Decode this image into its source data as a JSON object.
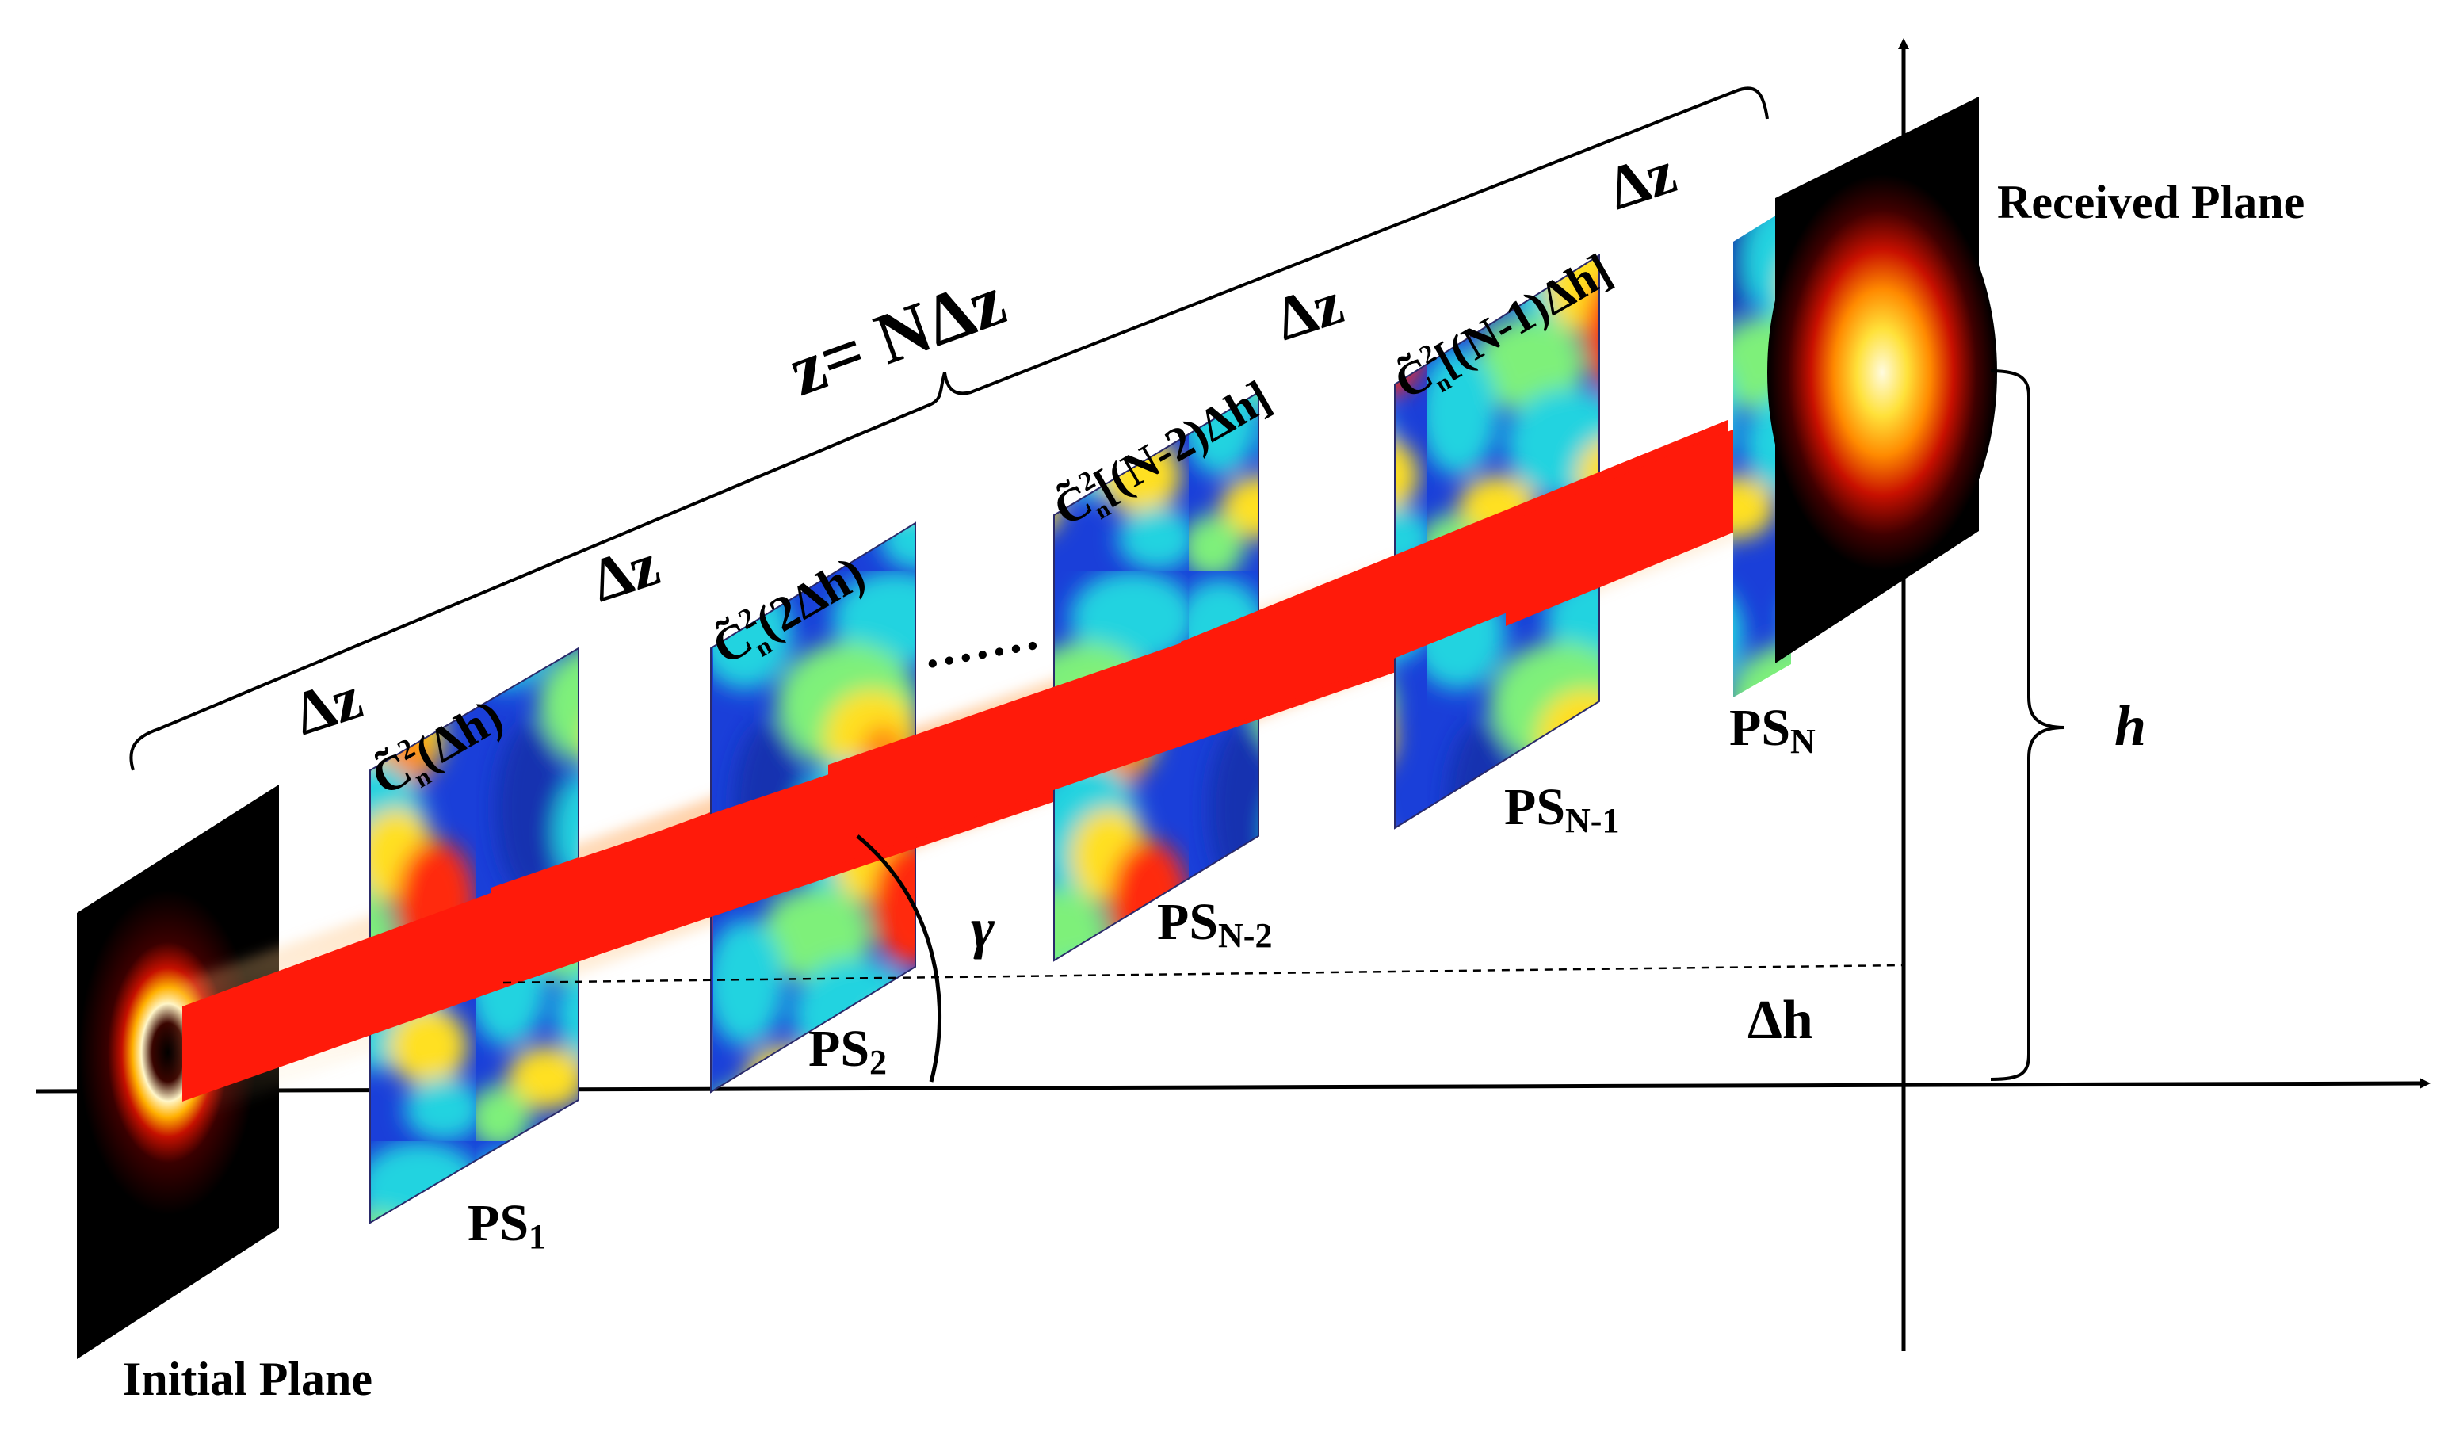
{
  "labels": {
    "initial_plane": "Initial Plane",
    "received_plane": "Received Plane",
    "total_distance": "z= NΔz",
    "height": "h",
    "delta_h": "Δh",
    "angle": "γ",
    "ellipsis": "·······",
    "delta_z_1": "Δz",
    "delta_z_2": "Δz",
    "delta_z_3": "Δz",
    "delta_z_4": "Δz"
  },
  "screens": [
    {
      "name": "PS",
      "sub": "1",
      "cn2_arg": "(Δh)"
    },
    {
      "name": "PS",
      "sub": "2",
      "cn2_arg": "(2Δh)"
    },
    {
      "name": "PS",
      "sub": "N-2",
      "cn2_arg": "[(N-2)Δh]"
    },
    {
      "name": "PS",
      "sub": "N-1",
      "cn2_arg": "[(N-1)Δh]"
    },
    {
      "name": "PS",
      "sub": "N"
    }
  ],
  "cn2_symbol": "C̃",
  "cn2_sup": "2",
  "cn2_sub": "n",
  "colors": {
    "beam": "#ff1a0a",
    "plane_background": "#000000",
    "turbulence_low": "#1a3fd9",
    "turbulence_mid": "#22d3e0",
    "turbulence_high": "#ffe020",
    "turbulence_peak": "#ff2a10"
  }
}
